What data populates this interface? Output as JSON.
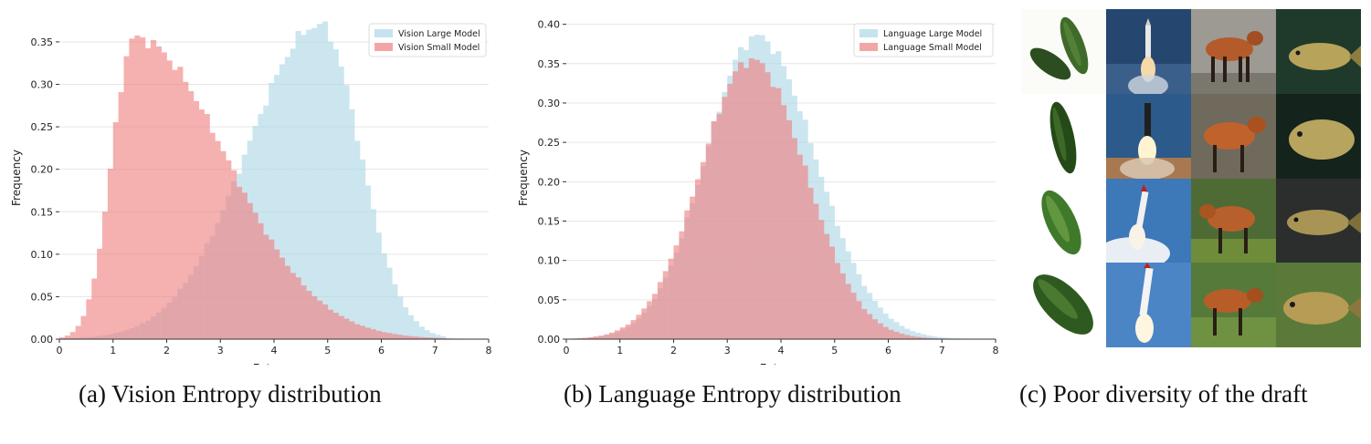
{
  "chart_data": [
    {
      "type": "histogram",
      "id": "a",
      "caption": "(a) Vision Entropy distribution",
      "xlabel": "Entropy",
      "ylabel": "Frequency",
      "xlim": [
        0,
        8
      ],
      "ylim": [
        0,
        0.38
      ],
      "xticks": [
        "0",
        "1",
        "2",
        "3",
        "4",
        "5",
        "6",
        "7",
        "8"
      ],
      "yticks": [
        "0.00",
        "0.05",
        "0.10",
        "0.15",
        "0.20",
        "0.25",
        "0.30",
        "0.35"
      ],
      "bin_width": 0.1,
      "legend_position": "top-right",
      "series": [
        {
          "name": "Vision Large Model",
          "color": "#add8e6",
          "type": "gaussian",
          "mean": 4.85,
          "sd_left": 1.35,
          "sd_right": 0.75,
          "peak": 0.37,
          "start": 0.1,
          "end": 7.2
        },
        {
          "name": "Vision Small Model",
          "color": "#f08080",
          "type": "gaussian",
          "mean": 1.4,
          "sd_left": 0.42,
          "sd_right": 1.7,
          "peak": 0.355,
          "start": 0.05,
          "end": 7.9
        }
      ]
    },
    {
      "type": "histogram",
      "id": "b",
      "caption": "(b) Language Entropy distribution",
      "xlabel": "Entropy",
      "ylabel": "Frequency",
      "xlim": [
        0,
        8
      ],
      "ylim": [
        0,
        0.41
      ],
      "xticks": [
        "0",
        "1",
        "2",
        "3",
        "4",
        "5",
        "6",
        "7",
        "8"
      ],
      "yticks": [
        "0.00",
        "0.05",
        "0.10",
        "0.15",
        "0.20",
        "0.25",
        "0.30",
        "0.35",
        "0.40"
      ],
      "bin_width": 0.1,
      "legend_position": "top-right",
      "series": [
        {
          "name": "Language Large Model",
          "color": "#add8e6",
          "type": "gaussian",
          "mean": 3.55,
          "sd_left": 0.95,
          "sd_right": 1.08,
          "peak": 0.385,
          "start": 0.0,
          "end": 7.5
        },
        {
          "name": "Language Small Model",
          "color": "#f08080",
          "type": "gaussian",
          "mean": 3.45,
          "sd_left": 0.95,
          "sd_right": 1.0,
          "peak": 0.355,
          "start": 0.0,
          "end": 7.4
        }
      ]
    }
  ],
  "draft_grid": {
    "caption": "(c) Poor diversity of the draft",
    "columns": [
      {
        "subject": "cucumber"
      },
      {
        "subject": "rocket"
      },
      {
        "subject": "maned wolf"
      },
      {
        "subject": "tench fish"
      }
    ]
  }
}
